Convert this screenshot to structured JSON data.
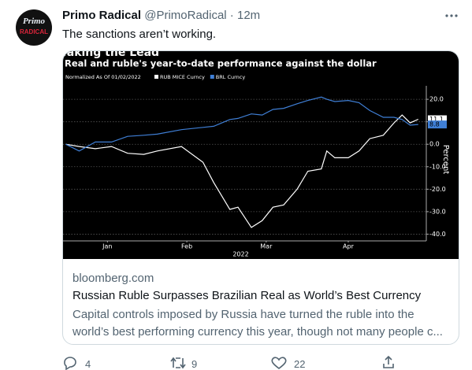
{
  "tweet": {
    "avatar_text": [
      "Primo",
      "RADICAL"
    ],
    "name": "Primo Radical",
    "handle": "@PrimoRadical",
    "time": "12m",
    "text": "The sanctions aren’t working.",
    "card": {
      "domain": "bloomberg.com",
      "headline": "Russian Ruble Surpasses Brazilian Real as World’s Best Currency",
      "description": "Capital controls imposed by Russia have turned the ruble into the world’s best performing currency this year, though not many people c..."
    },
    "actions": {
      "replies": 4,
      "retweets": 9,
      "likes": 22
    }
  },
  "chart_data": {
    "type": "line",
    "kicker": "Taking the Lead",
    "title": "Real and ruble's year-to-date performance against the dollar",
    "note": "Normalized As Of 01/02/2022",
    "y_label": "Percent",
    "x_label": "2022",
    "x": [
      0,
      5,
      11,
      17,
      23,
      29,
      34,
      43,
      51,
      55,
      61,
      64,
      69,
      73,
      77,
      81,
      86,
      90,
      95,
      97,
      100,
      105,
      109,
      113,
      118,
      122,
      125,
      128,
      131
    ],
    "series": [
      {
        "name": "RUB MICE Curncy",
        "color": "#ffffff",
        "values": [
          0,
          -1,
          -2,
          -1,
          -4,
          -4.5,
          -3,
          -1,
          -8,
          -17,
          -29,
          -28,
          -37,
          -34,
          -28,
          -27,
          -20,
          -12,
          -11,
          -3,
          -6,
          -6,
          -3,
          2.5,
          4,
          9.5,
          13,
          9.5,
          11.1
        ]
      },
      {
        "name": "BRL Curncy",
        "color": "#3f7fd6",
        "values": [
          0,
          -3,
          1,
          1,
          3.5,
          4,
          4.5,
          6.5,
          7.5,
          8,
          11,
          11.5,
          13.5,
          13,
          15.5,
          16,
          18,
          19.5,
          21,
          20,
          19,
          19.5,
          18.5,
          15,
          12,
          12,
          11,
          8.5,
          8.8
        ]
      }
    ],
    "xlim": [
      -1,
      134
    ],
    "xticks": [
      {
        "value": 15.5,
        "label": "Jan"
      },
      {
        "value": 45,
        "label": "Feb"
      },
      {
        "value": 74.5,
        "label": "Mar"
      },
      {
        "value": 105,
        "label": "Apr"
      }
    ],
    "ylim": [
      -43,
      26
    ],
    "yticks": [
      {
        "value": 20,
        "label": "20.0"
      },
      {
        "value": 10,
        "label": "10.0"
      },
      {
        "value": 0,
        "label": "0.0"
      },
      {
        "value": -10,
        "label": "-10.0"
      },
      {
        "value": -20,
        "label": "-20.0"
      },
      {
        "value": -30,
        "label": "-30.0"
      },
      {
        "value": -40,
        "label": "-40.0"
      }
    ],
    "grid": true
  }
}
